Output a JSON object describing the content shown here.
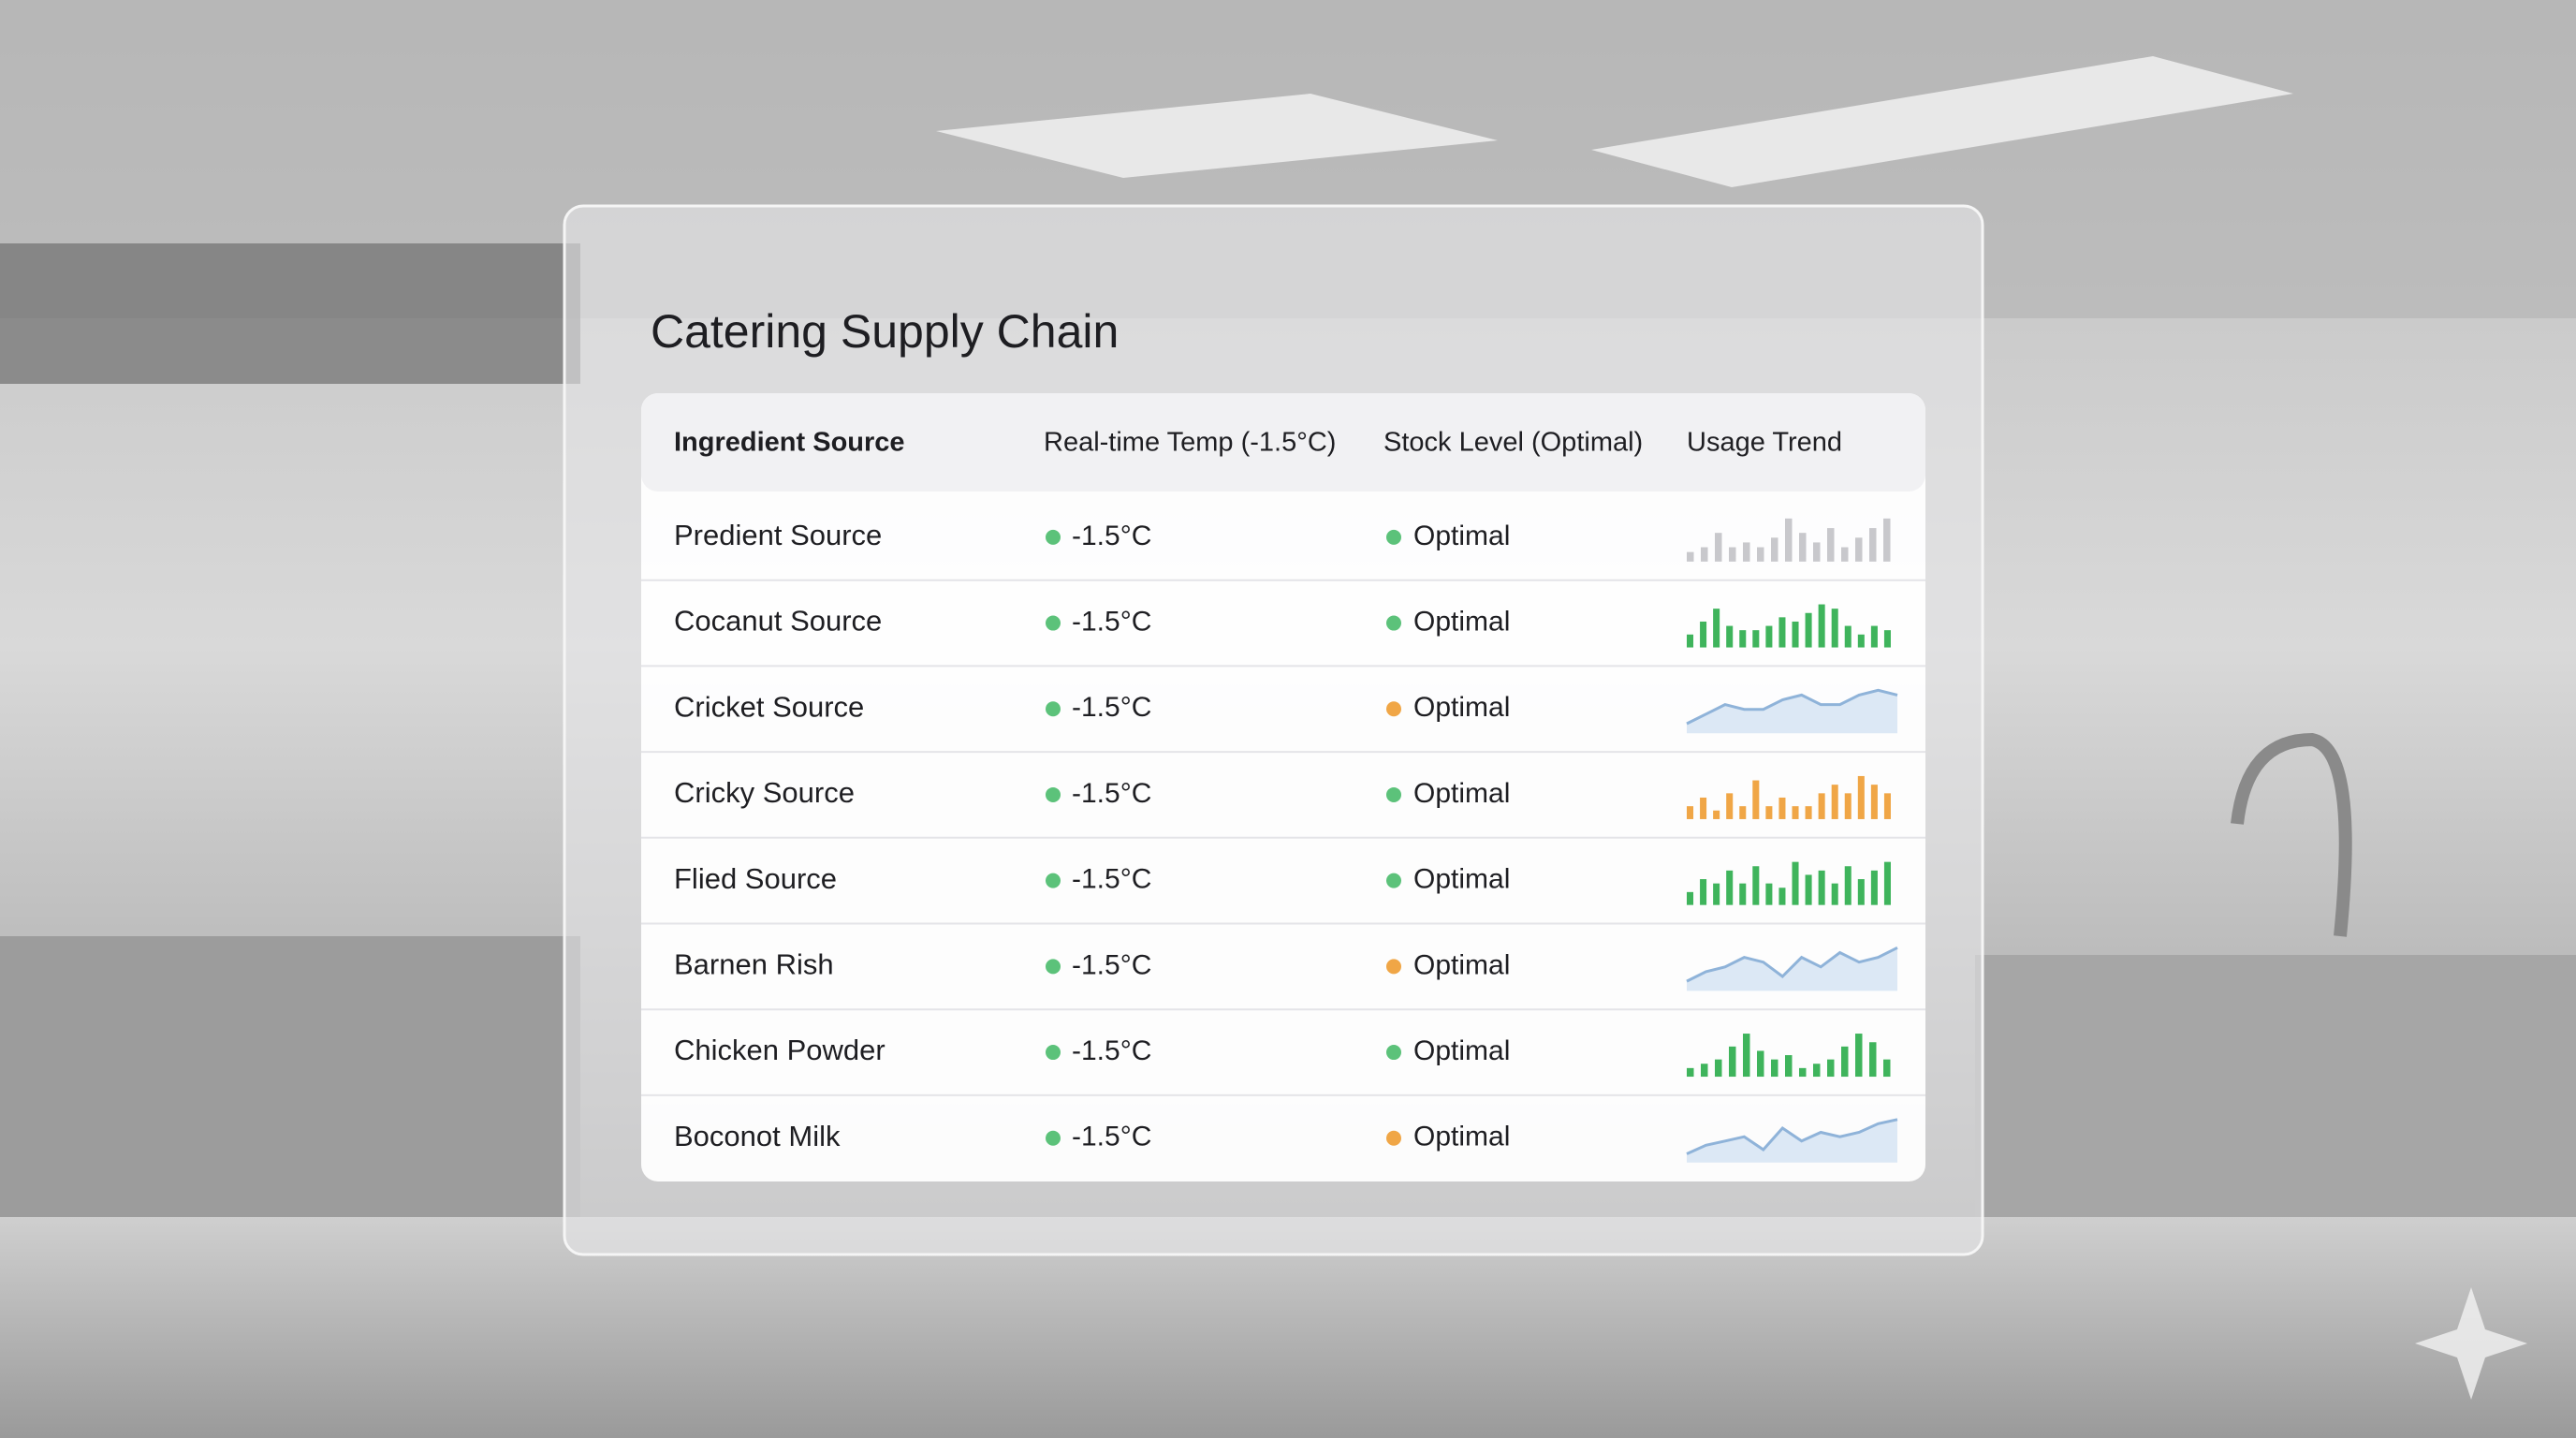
{
  "header": {
    "title": "Catering Supply Chain"
  },
  "table": {
    "columns": [
      "Ingredient Source",
      "Real-time Temp (-1.5°C)",
      "Stock Level (Optimal)",
      "Usage Trend"
    ],
    "rows": [
      {
        "name": "Predient Source",
        "temp": "-1.5°C",
        "stock": "Optimal",
        "status_color": "#5cc27a",
        "trend": {
          "kind": "bars",
          "color": "#c8c8cc",
          "values": [
            2,
            3,
            6,
            3,
            4,
            3,
            5,
            9,
            6,
            4,
            7,
            3,
            5,
            7,
            9
          ]
        }
      },
      {
        "name": "Cocanut Source",
        "temp": "-1.5°C",
        "stock": "Optimal",
        "status_color": "#5cc27a",
        "trend": {
          "kind": "bars",
          "color": "#3fb45c",
          "values": [
            3,
            6,
            9,
            5,
            4,
            4,
            5,
            7,
            6,
            8,
            10,
            9,
            5,
            3,
            5,
            4
          ]
        }
      },
      {
        "name": "Cricket Source",
        "temp": "-1.5°C",
        "stock": "Optimal",
        "status_color": "#f0a646",
        "trend": {
          "kind": "line",
          "color": "#8fb3d9",
          "values": [
            2,
            4,
            6,
            5,
            5,
            7,
            8,
            6,
            6,
            8,
            9,
            8
          ]
        }
      },
      {
        "name": "Cricky Source",
        "temp": "-1.5°C",
        "stock": "Optimal",
        "status_color": "#5cc27a",
        "trend": {
          "kind": "bars",
          "color": "#f0a646",
          "values": [
            3,
            5,
            2,
            6,
            3,
            9,
            3,
            5,
            3,
            3,
            6,
            8,
            6,
            10,
            8,
            6
          ]
        }
      },
      {
        "name": "Flied Source",
        "temp": "-1.5°C",
        "stock": "Optimal",
        "status_color": "#5cc27a",
        "trend": {
          "kind": "bars",
          "color": "#3fb45c",
          "values": [
            3,
            6,
            5,
            8,
            5,
            9,
            5,
            4,
            10,
            7,
            8,
            5,
            9,
            6,
            8,
            10
          ]
        }
      },
      {
        "name": "Barnen Rish",
        "temp": "-1.5°C",
        "stock": "Optimal",
        "status_color": "#f0a646",
        "trend": {
          "kind": "line",
          "color": "#8fb3d9",
          "values": [
            2,
            4,
            5,
            7,
            6,
            3,
            7,
            5,
            8,
            6,
            7,
            9
          ]
        }
      },
      {
        "name": "Chicken Powder",
        "temp": "-1.5°C",
        "stock": "Optimal",
        "status_color": "#5cc27a",
        "trend": {
          "kind": "bars",
          "color": "#3fb45c",
          "values": [
            2,
            3,
            4,
            7,
            10,
            6,
            4,
            5,
            2,
            3,
            4,
            7,
            10,
            8,
            4
          ]
        }
      },
      {
        "name": "Boconot Milk",
        "temp": "-1.5°C",
        "stock": "Optimal",
        "status_color": "#f0a646",
        "trend": {
          "kind": "line",
          "color": "#8fb3d9",
          "values": [
            2,
            4,
            5,
            6,
            3,
            8,
            5,
            7,
            6,
            7,
            9,
            10
          ]
        }
      }
    ]
  }
}
